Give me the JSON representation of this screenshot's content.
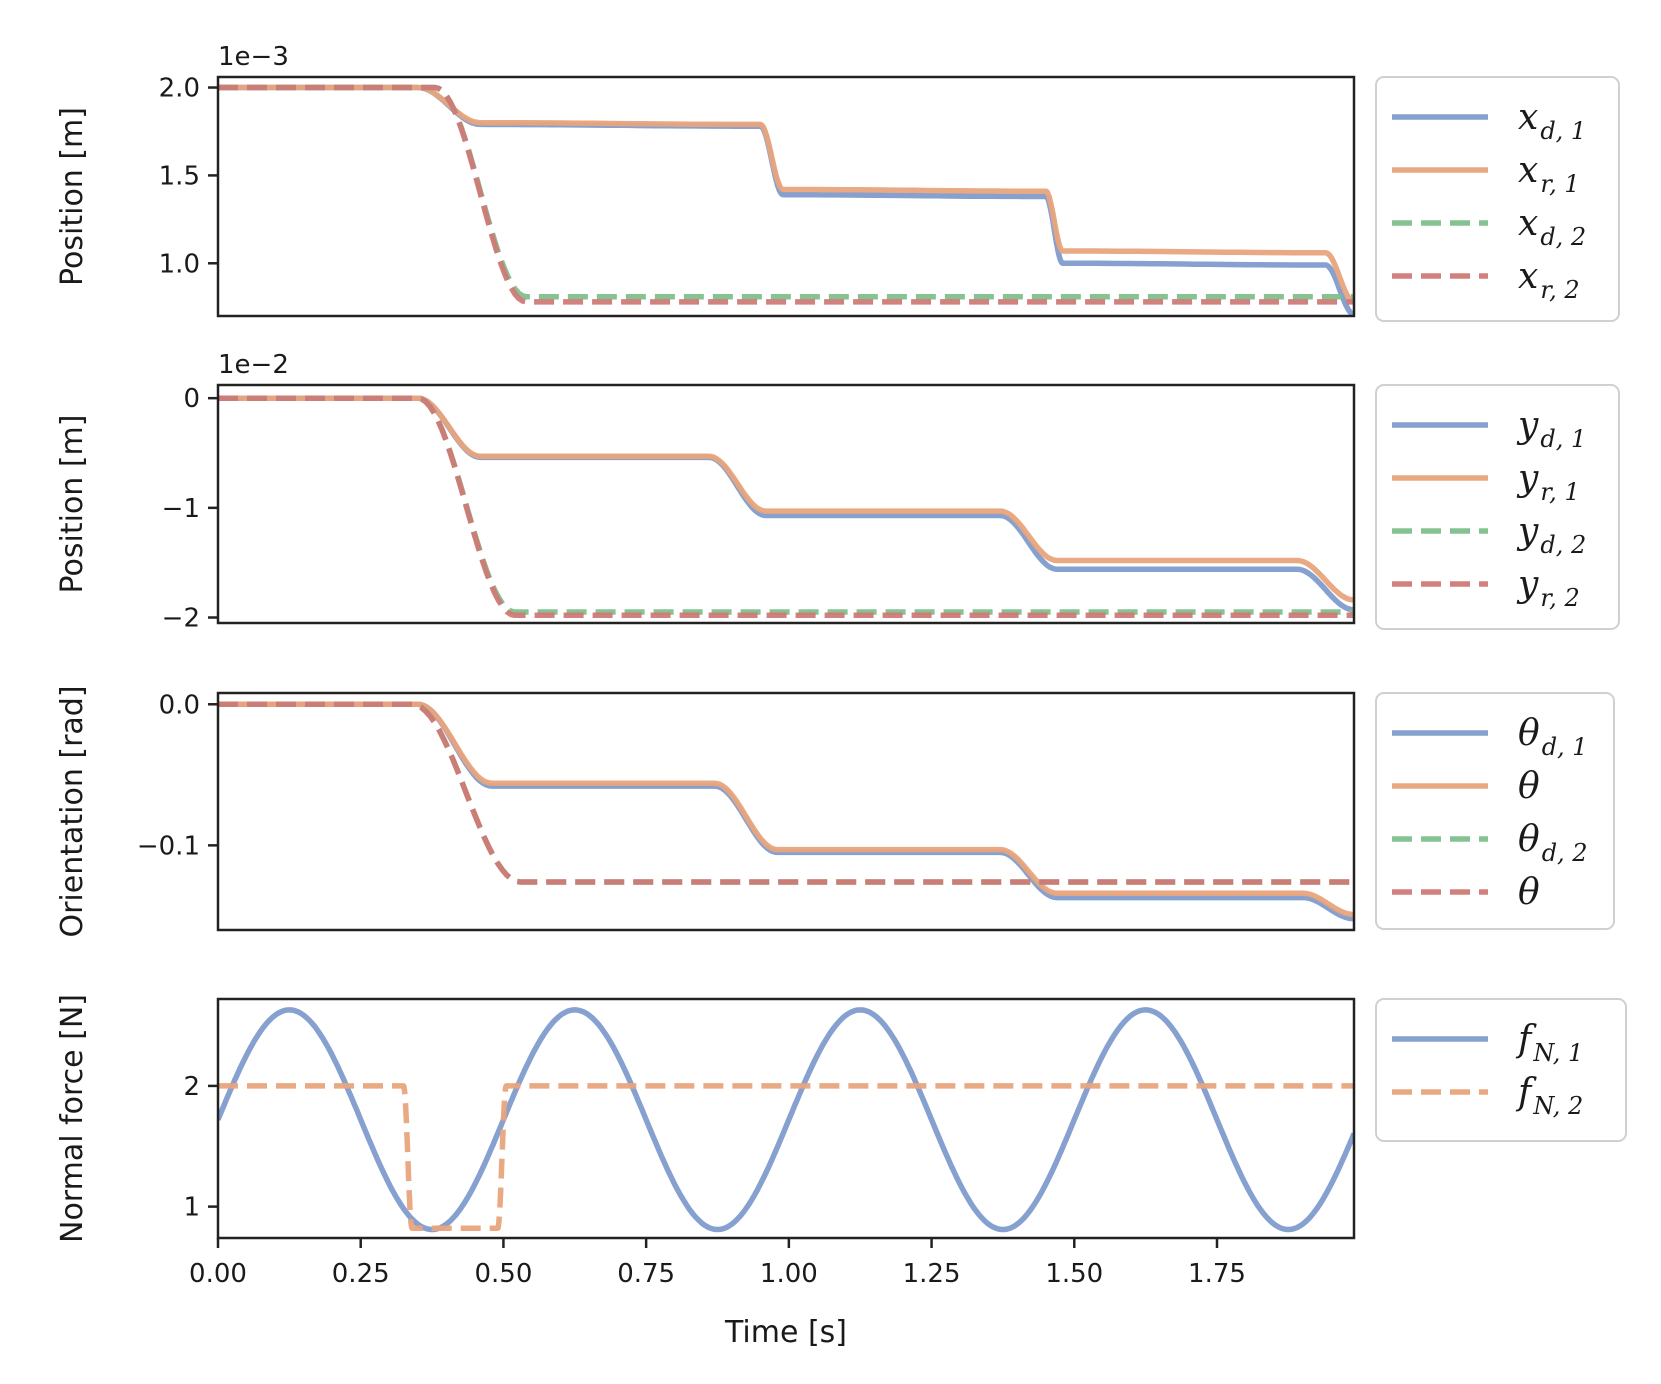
{
  "chart_data": {
    "type": "line",
    "x_range": [
      0,
      1.99
    ],
    "x_ticks": [
      0,
      0.25,
      0.5,
      0.75,
      1.0,
      1.25,
      1.5,
      1.75
    ],
    "x_tick_labels": [
      "0.00",
      "0.25",
      "0.50",
      "0.75",
      "1.00",
      "1.25",
      "1.50",
      "1.75"
    ],
    "xlabel": "Time [s]",
    "grid": false,
    "legend_placement": "outside-right",
    "panels": [
      {
        "ylabel": "Position [m]",
        "offset_text": "1e−3",
        "ylim": [
          0.7,
          2.06
        ],
        "y_ticks": [
          2.0,
          1.5,
          1.0
        ],
        "y_tick_labels": [
          "2.0",
          "1.5",
          "1.0"
        ],
        "series": [
          {
            "name": "x",
            "sub": "d, 1",
            "style": "solid",
            "color": "#7f9ccc",
            "x": [
              0,
              0.35,
              0.46,
              0.95,
              0.99,
              1.45,
              1.48,
              1.94,
              1.99
            ],
            "y": [
              2.0,
              2.0,
              1.79,
              1.78,
              1.39,
              1.38,
              1.0,
              0.99,
              0.71
            ]
          },
          {
            "name": "x",
            "sub": "r, 1",
            "style": "solid",
            "color": "#e8a47c",
            "x": [
              0,
              0.35,
              0.46,
              0.95,
              0.99,
              1.45,
              1.48,
              1.94,
              1.99
            ],
            "y": [
              2.0,
              2.0,
              1.8,
              1.79,
              1.42,
              1.41,
              1.07,
              1.06,
              0.78
            ]
          },
          {
            "name": "x",
            "sub": "d, 2",
            "style": "dashed",
            "color": "#7fbf8c",
            "x": [
              0,
              0.38,
              0.54,
              1.99
            ],
            "y": [
              2.0,
              2.0,
              0.81,
              0.81
            ]
          },
          {
            "name": "x",
            "sub": "r, 2",
            "style": "dashed",
            "color": "#cf7a77",
            "x": [
              0,
              0.38,
              0.54,
              1.99
            ],
            "y": [
              2.0,
              2.0,
              0.78,
              0.78
            ]
          }
        ]
      },
      {
        "ylabel": "Position [m]",
        "offset_text": "1e−2",
        "ylim": [
          -2.05,
          0.12
        ],
        "y_ticks": [
          0,
          -1,
          -2
        ],
        "y_tick_labels": [
          "0",
          "−1",
          "−2"
        ],
        "series": [
          {
            "name": "y",
            "sub": "d, 1",
            "style": "solid",
            "color": "#7f9ccc",
            "x": [
              0,
              0.35,
              0.46,
              0.86,
              0.96,
              1.37,
              1.47,
              1.89,
              1.99
            ],
            "y": [
              0,
              0,
              -0.54,
              -0.54,
              -1.07,
              -1.07,
              -1.56,
              -1.56,
              -1.93
            ]
          },
          {
            "name": "y",
            "sub": "r, 1",
            "style": "solid",
            "color": "#e8a47c",
            "x": [
              0,
              0.35,
              0.46,
              0.86,
              0.96,
              1.37,
              1.47,
              1.89,
              1.99
            ],
            "y": [
              0,
              0,
              -0.53,
              -0.53,
              -1.03,
              -1.03,
              -1.48,
              -1.48,
              -1.84
            ]
          },
          {
            "name": "y",
            "sub": "d, 2",
            "style": "dashed",
            "color": "#7fbf8c",
            "x": [
              0,
              0.35,
              0.52,
              1.99
            ],
            "y": [
              0,
              0,
              -1.95,
              -1.95
            ]
          },
          {
            "name": "y",
            "sub": "r, 2",
            "style": "dashed",
            "color": "#cf7a77",
            "x": [
              0,
              0.35,
              0.52,
              1.99
            ],
            "y": [
              0,
              0,
              -1.98,
              -1.98
            ]
          }
        ]
      },
      {
        "ylabel": "Orientation [rad]",
        "offset_text": "",
        "ylim": [
          -0.16,
          0.008
        ],
        "y_ticks": [
          0.0,
          -0.1
        ],
        "y_tick_labels": [
          "0.0",
          "−0.1"
        ],
        "series": [
          {
            "name": "θ",
            "sub": "d, 1",
            "style": "solid",
            "color": "#7f9ccc",
            "x": [
              0,
              0.35,
              0.48,
              0.87,
              0.98,
              1.37,
              1.47,
              1.9,
              1.99
            ],
            "y": [
              0,
              0,
              -0.058,
              -0.058,
              -0.105,
              -0.105,
              -0.137,
              -0.137,
              -0.152
            ]
          },
          {
            "name": "θ",
            "sub": "",
            "style": "solid",
            "color": "#e8a47c",
            "x": [
              0,
              0.35,
              0.48,
              0.87,
              0.98,
              1.37,
              1.47,
              1.9,
              1.99
            ],
            "y": [
              0,
              0,
              -0.056,
              -0.056,
              -0.103,
              -0.103,
              -0.134,
              -0.134,
              -0.149
            ]
          },
          {
            "name": "θ",
            "sub": "d, 2",
            "style": "dashed",
            "color": "#7fbf8c",
            "x": [
              0,
              0.34,
              0.53,
              1.99
            ],
            "y": [
              0,
              0,
              -0.126,
              -0.126
            ]
          },
          {
            "name": "θ",
            "sub": "",
            "style": "dashed",
            "color": "#cf7a77",
            "x": [
              0,
              0.34,
              0.53,
              1.99
            ],
            "y": [
              0,
              0,
              -0.126,
              -0.126
            ]
          }
        ]
      },
      {
        "ylabel": "Normal force [N]",
        "offset_text": "",
        "ylim": [
          0.74,
          2.72
        ],
        "y_ticks": [
          2,
          1
        ],
        "y_tick_labels": [
          "2",
          "1"
        ],
        "series": [
          {
            "name": "f",
            "sub": "N, 1",
            "style": "solid",
            "color": "#7f9ccc",
            "function": "sine",
            "mean": 1.72,
            "amplitude": 0.91,
            "period": 0.5
          },
          {
            "name": "f",
            "sub": "N, 2",
            "style": "dashed",
            "color": "#e8a47c",
            "x": [
              0,
              0.325,
              0.34,
              0.49,
              0.505,
              1.99
            ],
            "y": [
              2.0,
              2.0,
              0.82,
              0.82,
              2.0,
              2.0
            ]
          }
        ]
      }
    ]
  }
}
